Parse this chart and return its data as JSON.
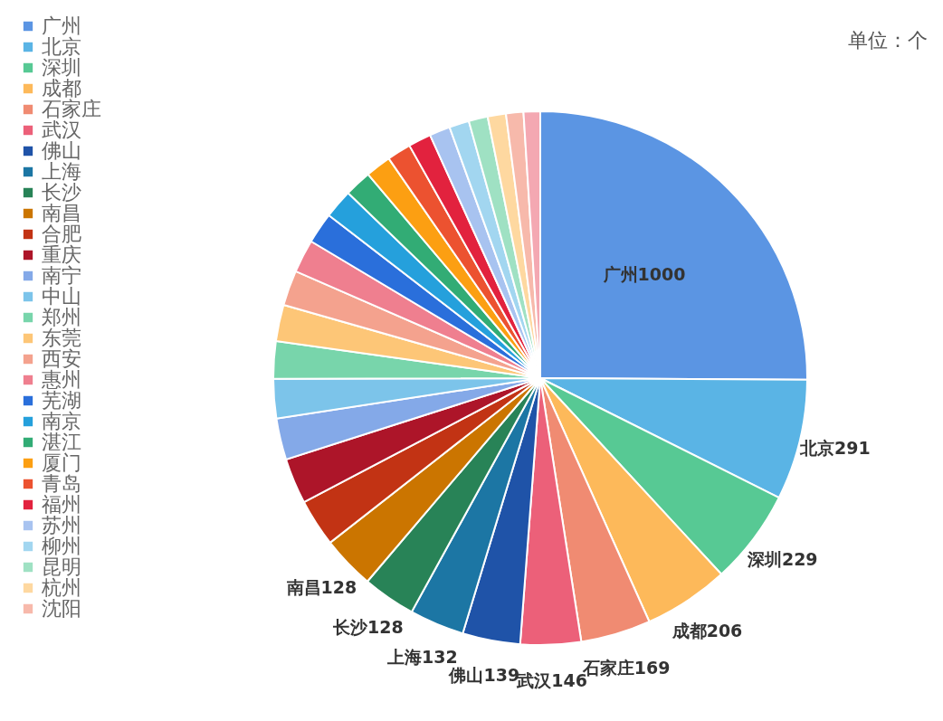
{
  "chart_data": {
    "type": "pie",
    "categories": [
      "广州",
      "北京",
      "深圳",
      "成都",
      "石家庄",
      "武汉",
      "佛山",
      "上海",
      "长沙",
      "南昌",
      "合肥",
      "重庆",
      "南宁",
      "中山",
      "郑州",
      "东莞",
      "西安",
      "惠州",
      "芜湖",
      "南京",
      "湛江",
      "厦门",
      "青岛",
      "福州",
      "苏州",
      "柳州",
      "昆明",
      "杭州",
      "沈阳",
      null
    ],
    "values": [
      1000,
      291,
      229,
      206,
      169,
      146,
      139,
      132,
      128,
      128,
      115,
      110,
      100,
      95,
      90,
      88,
      85,
      80,
      75,
      70,
      65,
      62,
      58,
      55,
      50,
      48,
      46,
      44,
      42,
      40
    ],
    "colors": [
      "#5b95e3",
      "#5ab4e5",
      "#57c994",
      "#fdb95a",
      "#f08b72",
      "#ec6079",
      "#1f53a8",
      "#1c76a4",
      "#288357",
      "#cb7500",
      "#c23314",
      "#ad1529",
      "#84a9e8",
      "#7cc4ea",
      "#78d5ab",
      "#fdc677",
      "#f4a28e",
      "#ef7f8f",
      "#2a6fdb",
      "#25a0dc",
      "#32ac75",
      "#fc9f12",
      "#ec5230",
      "#e2223e",
      "#a8c3f0",
      "#a2d6f0",
      "#9fe1c3",
      "#fed8a0",
      "#f7b9ab",
      "#f4a8b2"
    ],
    "value_labels": [
      "广州1000",
      "北京291",
      "深圳229",
      "成都206",
      "石家庄169",
      "武汉146",
      "佛山139",
      "上海132",
      "长沙128",
      "南昌128",
      null,
      null,
      null,
      null,
      null,
      null,
      null,
      null,
      null,
      null,
      null,
      null,
      null,
      null,
      null,
      null,
      null,
      null,
      null,
      null
    ],
    "legend": "left",
    "annotations": [
      "单位：个"
    ]
  }
}
